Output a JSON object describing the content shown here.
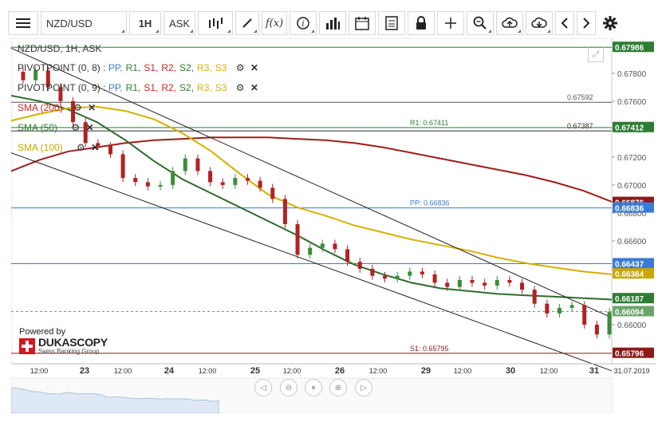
{
  "toolbar": {
    "instrument": "NZD/USD",
    "period": "1H",
    "side": "ASK",
    "items": [
      "menu-icon",
      "instrument-select",
      "period-select",
      "side-select",
      "chart-type-icon",
      "draw-icon",
      "fx-icon",
      "info-icon",
      "volume-icon",
      "calendar-icon",
      "report-icon",
      "lock-icon",
      "crosshair-icon",
      "zoom-icon",
      "upload-icon",
      "download-icon",
      "prev-icon",
      "next-icon",
      "settings-icon"
    ],
    "fx_label": "f(x)"
  },
  "legend": {
    "title": "NZD/USD, 1H, ASK",
    "pivot1": "PIVOTPOINT (0, 8)",
    "pivot2": "PIVOTPOINT (0, 9)",
    "pivot_sep": " : ",
    "pivot_items": [
      {
        "label": "PP,",
        "color": "#3a7bd5"
      },
      {
        "label": "R1,",
        "color": "#2e7d32"
      },
      {
        "label": "S1,",
        "color": "#c62828"
      },
      {
        "label": "R2,",
        "color": "#c62828"
      },
      {
        "label": "S2,",
        "color": "#2e7d32"
      },
      {
        "label": "R3,",
        "color": "#e0b000"
      },
      {
        "label": "S3",
        "color": "#e0b000"
      }
    ],
    "sma200": "SMA (200)",
    "sma50": "SMA (50)",
    "sma100": "SMA (100)",
    "sma200_color": "#c62828",
    "sma50_color": "#2e7d32",
    "sma100_color": "#d4b000"
  },
  "branding": {
    "powered_by": "Powered by",
    "name": "DUKASCOPY",
    "sub": "Swiss Banking Group"
  },
  "chart_data": {
    "type": "line",
    "instrument": "NZD/USD",
    "timeframe": "1H",
    "ylim": [
      0.6572,
      0.6805
    ],
    "y_ticks": [
      0.66,
      0.662,
      0.664,
      0.666,
      0.668,
      0.67,
      0.672,
      0.674,
      0.676,
      0.678
    ],
    "y_tick_labels": [
      "0.66000",
      "0.66200",
      "0.66400",
      "0.66600",
      "0.66800",
      "0.67000",
      "0.67200",
      "0.67400",
      "0.67600",
      "0.67800"
    ],
    "x_ticks": [
      "12:00",
      "23",
      "12:00",
      "24",
      "12:00",
      "25",
      "12:00",
      "26",
      "12:00",
      "29",
      "12:00",
      "30",
      "12:00",
      "31",
      "31.07.2019"
    ],
    "date_labels": [
      "23",
      "24",
      "25",
      "26",
      "29",
      "30",
      "31"
    ],
    "last_price": 0.66094,
    "price_labels": [
      {
        "text": "0.67986",
        "value": 0.67986,
        "bg": "#2e7d32"
      },
      {
        "text": "0.67412",
        "value": 0.67412,
        "bg": "#2e7d32"
      },
      {
        "text": "0.66876",
        "value": 0.66876,
        "bg": "#8b1a1a"
      },
      {
        "text": "0.66836",
        "value": 0.66836,
        "bg": "#3a7bd5"
      },
      {
        "text": "0.66437",
        "value": 0.66437,
        "bg": "#3a7bd5"
      },
      {
        "text": "0.66364",
        "value": 0.66364,
        "bg": "#c9a800"
      },
      {
        "text": "0.66187",
        "value": 0.66187,
        "bg": "#2e7d32"
      },
      {
        "text": "0.66094",
        "value": 0.66094,
        "bg": "#6aa56a"
      },
      {
        "text": "0.65796",
        "value": 0.65796,
        "bg": "#8b1a1a"
      }
    ],
    "hlines": [
      {
        "value": 0.67986,
        "color": "#2e7d32",
        "label": ""
      },
      {
        "value": 0.67592,
        "color": "#555555",
        "label": "0.67592",
        "style": "solid"
      },
      {
        "value": 0.67411,
        "color": "#2e7d32",
        "label": "R1: 0.67411"
      },
      {
        "value": 0.67387,
        "color": "#333333",
        "label": "0.67387"
      },
      {
        "value": 0.66836,
        "color": "#3a7bd5",
        "label": "PP: 0.66836"
      },
      {
        "value": 0.66437,
        "color": "#3a7bd5",
        "label": ""
      },
      {
        "value": 0.66094,
        "color": "#6aa56a",
        "label": "",
        "dashed": true
      },
      {
        "value": 0.65795,
        "color": "#8b1a1a",
        "label": "S1: 0.65795"
      }
    ],
    "series": [
      {
        "name": "SMA (200)",
        "color": "#a01c1c",
        "values": [
          0.671,
          0.6718,
          0.6724,
          0.6727,
          0.673,
          0.6732,
          0.6733,
          0.6734,
          0.6734,
          0.6734,
          0.6733,
          0.6732,
          0.673,
          0.6727,
          0.6723,
          0.6719,
          0.6715,
          0.6711,
          0.6707,
          0.6702,
          0.6696,
          0.6688
        ]
      },
      {
        "name": "SMA (50)",
        "color": "#2e6b2e",
        "values": [
          0.6764,
          0.676,
          0.6754,
          0.6745,
          0.6732,
          0.6717,
          0.6704,
          0.6694,
          0.6684,
          0.6674,
          0.6664,
          0.6653,
          0.6643,
          0.6636,
          0.663,
          0.6626,
          0.6624,
          0.6622,
          0.6621,
          0.662,
          0.6619,
          0.6618
        ]
      },
      {
        "name": "SMA (100)",
        "color": "#d4b000",
        "values": [
          0.6746,
          0.6751,
          0.6755,
          0.6756,
          0.6753,
          0.6747,
          0.6737,
          0.6724,
          0.6708,
          0.6693,
          0.6684,
          0.6678,
          0.6671,
          0.6666,
          0.6661,
          0.6657,
          0.6653,
          0.6648,
          0.6644,
          0.6641,
          0.6638,
          0.6636
        ]
      },
      {
        "name": "Channel upper",
        "color": "#222222",
        "values": [
          0.6798,
          0.6605
        ]
      },
      {
        "name": "Channel lower",
        "color": "#222222",
        "values": [
          0.6723,
          0.6567
        ]
      },
      {
        "name": "Price",
        "color": "#b22222",
        "values": [
          0.6775,
          0.6782,
          0.677,
          0.676,
          0.6745,
          0.673,
          0.6728,
          0.6722,
          0.6705,
          0.6702,
          0.6699,
          0.67,
          0.671,
          0.6719,
          0.671,
          0.6702,
          0.67,
          0.6705,
          0.6703,
          0.6698,
          0.669,
          0.6672,
          0.665,
          0.6655,
          0.6658,
          0.6654,
          0.6645,
          0.664,
          0.6635,
          0.6633,
          0.6635,
          0.6638,
          0.6636,
          0.663,
          0.6627,
          0.6632,
          0.663,
          0.6628,
          0.6632,
          0.663,
          0.6625,
          0.6615,
          0.6608,
          0.6612,
          0.6614,
          0.66,
          0.6593,
          0.6609
        ]
      }
    ]
  }
}
